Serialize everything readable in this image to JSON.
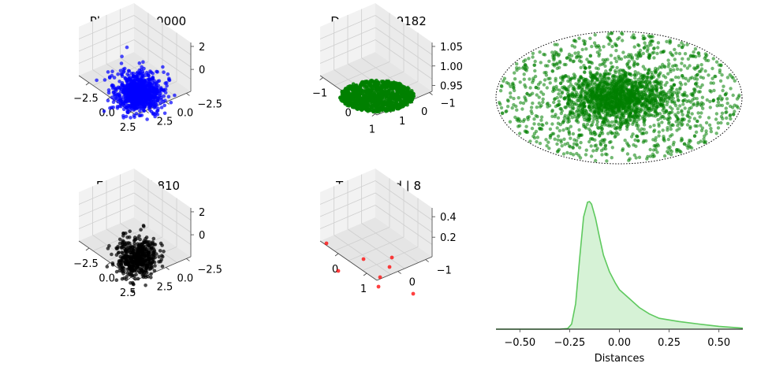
{
  "chart_data": [
    {
      "type": "scatter",
      "subtype": "3d",
      "title": "Photons | 10000",
      "color": "#0000ff",
      "ztick_labels": [
        "0",
        "2"
      ],
      "xtick_labels": [
        "−2.5",
        "0.0",
        "2.5"
      ],
      "ytick_labels": [
        "−2.5",
        "0.0",
        "2.5"
      ],
      "point_count": 10000,
      "distribution": "dense spherical cloud centered at origin"
    },
    {
      "type": "scatter",
      "subtype": "3d",
      "title": "Detected | 9182",
      "color": "#008000",
      "ztick_labels": [
        "0.95",
        "1.00",
        "1.05"
      ],
      "xtick_labels": [
        "−1",
        "0",
        "1"
      ],
      "ytick_labels": [
        "−1",
        "0",
        "1"
      ],
      "point_count": 9182,
      "distribution": "flat disc at z = 1"
    },
    {
      "type": "scatter",
      "subtype": "projection",
      "title": "",
      "color": "#008000",
      "boundary": "dotted ellipse",
      "distribution": "dense core near center, sparse toward edges"
    },
    {
      "type": "scatter",
      "subtype": "3d",
      "title": "Escaped | 810",
      "color": "#000000",
      "ztick_labels": [
        "0",
        "2"
      ],
      "xtick_labels": [
        "−2.5",
        "0.0",
        "2.5"
      ],
      "ytick_labels": [
        "−2.5",
        "0.0",
        "2.5"
      ],
      "point_count": 810,
      "distribution": "spherical cloud centered at origin"
    },
    {
      "type": "scatter",
      "subtype": "3d",
      "title": "Terminated | 8",
      "color": "#ff0000",
      "ztick_labels": [
        "0.2",
        "0.4"
      ],
      "xtick_labels": [
        "0",
        "1"
      ],
      "ytick_labels": [
        "−1",
        "0"
      ],
      "point_count": 8
    },
    {
      "type": "area",
      "subtype": "kde",
      "title": "",
      "xlabel": "Distances",
      "color": "#5ec95e",
      "fill": "#d6f2d6",
      "xlim": [
        -0.62,
        0.62
      ],
      "xtick_labels": [
        "−0.50",
        "−0.25",
        "0.00",
        "0.25",
        "0.50"
      ],
      "x": [
        -0.62,
        -0.3,
        -0.26,
        -0.24,
        -0.22,
        -0.2,
        -0.18,
        -0.16,
        -0.15,
        -0.14,
        -0.12,
        -0.1,
        -0.08,
        -0.05,
        -0.02,
        0.0,
        0.05,
        0.1,
        0.15,
        0.2,
        0.3,
        0.4,
        0.5,
        0.62
      ],
      "density": [
        0.0,
        0.0,
        0.005,
        0.04,
        0.2,
        0.55,
        0.88,
        0.995,
        1.0,
        0.98,
        0.87,
        0.72,
        0.58,
        0.45,
        0.36,
        0.31,
        0.24,
        0.17,
        0.12,
        0.085,
        0.06,
        0.04,
        0.022,
        0.008
      ]
    }
  ]
}
